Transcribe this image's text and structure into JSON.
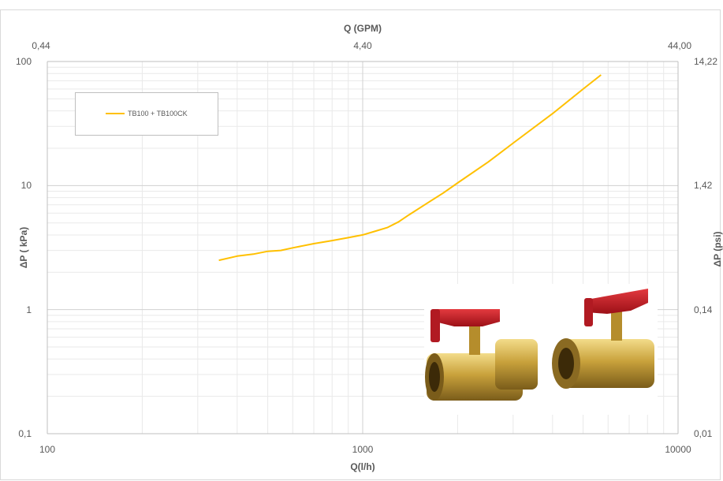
{
  "chart_data": {
    "type": "line",
    "x_scale": "log",
    "y_scale": "log",
    "xlabel": "Q(l/h)",
    "ylabel": "ΔP ( kPa)",
    "secondary_xlabel": "Q (GPM)",
    "secondary_ylabel": "ΔP (psi)",
    "xlim": [
      100,
      10000
    ],
    "ylim": [
      0.1,
      100
    ],
    "x_ticks": [
      "100",
      "1000",
      "10000"
    ],
    "y_ticks": [
      "0,1",
      "1",
      "10",
      "100"
    ],
    "secondary_x_ticks": [
      "0,44",
      "4,40",
      "44,00"
    ],
    "secondary_y_ticks": [
      "0,01",
      "0,14",
      "1,42",
      "14,22"
    ],
    "grid": true,
    "legend_position": "top-left",
    "series": [
      {
        "name": "TB100 + TB100CK",
        "color": "#FFC000",
        "x": [
          350,
          400,
          450,
          500,
          550,
          600,
          700,
          800,
          900,
          1000,
          1100,
          1200,
          1300,
          1400,
          1600,
          1800,
          2000,
          2500,
          3000,
          4000,
          5000,
          5700
        ],
        "y": [
          2.5,
          2.7,
          2.8,
          2.95,
          3.0,
          3.15,
          3.4,
          3.6,
          3.8,
          4.0,
          4.3,
          4.6,
          5.1,
          5.8,
          7.2,
          8.7,
          10.5,
          15.5,
          22.0,
          38.0,
          60.0,
          78.0
        ]
      }
    ]
  },
  "image": {
    "name": "TB100 and TB100CK brass ball valves with red butterfly handles",
    "accent": "#cc1f2a",
    "brass": "#c9a23c"
  }
}
